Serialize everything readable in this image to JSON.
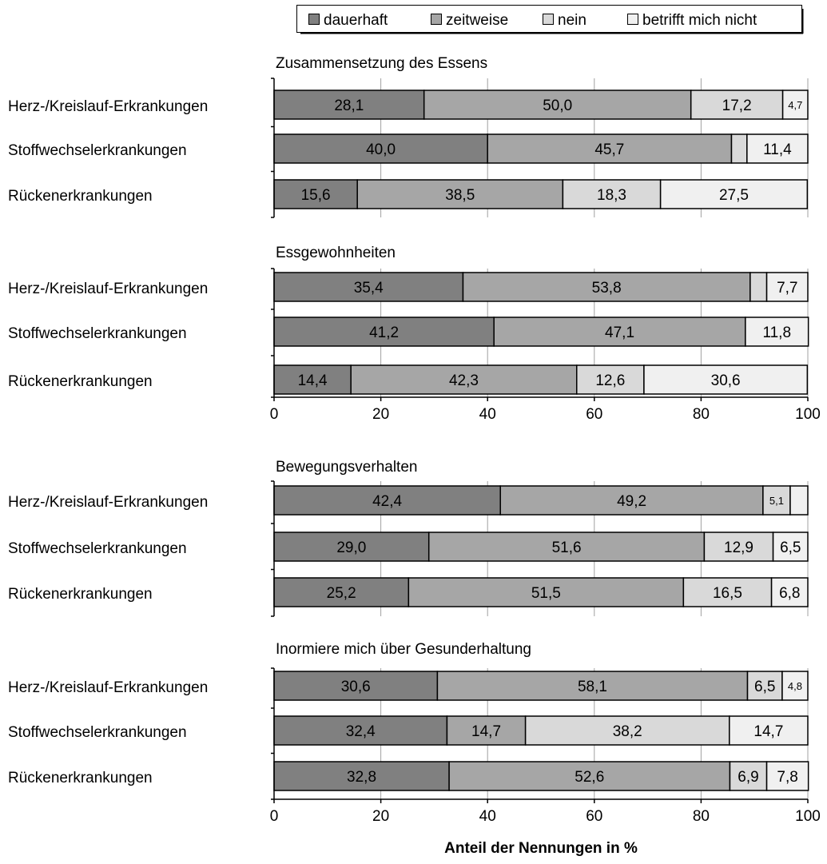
{
  "chart_data": {
    "type": "bar",
    "orientation": "horizontal",
    "stacked": true,
    "series": [
      {
        "name": "dauerhaft",
        "color": "#808080"
      },
      {
        "name": "zeitweise",
        "color": "#a6a6a6"
      },
      {
        "name": "nein",
        "color": "#d9d9d9"
      },
      {
        "name": "betrifft mich nicht",
        "color": "#f0f0f0"
      }
    ],
    "legend_position": "top-right",
    "xlim": [
      0,
      100
    ],
    "x_ticks": [
      "0",
      "20",
      "40",
      "60",
      "80",
      "100"
    ],
    "xlabel": "Anteil der Nennungen in %",
    "grid": "vertical",
    "panels": [
      {
        "title": "Zusammensetzung des Essens",
        "rows": [
          {
            "label": "Herz-/Kreislauf-Erkrankungen",
            "values": [
              28.1,
              50.0,
              17.2,
              4.7
            ],
            "labels": [
              "28,1",
              "50,0",
              "17,2",
              "4,7"
            ]
          },
          {
            "label": "Stoffwechselerkrankungen",
            "values": [
              40.0,
              45.7,
              2.9,
              11.4
            ],
            "labels": [
              "40,0",
              "45,7",
              "",
              "11,4"
            ]
          },
          {
            "label": "Rückenerkrankungen",
            "values": [
              15.6,
              38.5,
              18.3,
              27.5
            ],
            "labels": [
              "15,6",
              "38,5",
              "18,3",
              "27,5"
            ]
          }
        ]
      },
      {
        "title": "Essgewohnheiten",
        "rows": [
          {
            "label": "Herz-/Kreislauf-Erkrankungen",
            "values": [
              35.4,
              53.8,
              3.1,
              7.7
            ],
            "labels": [
              "35,4",
              "53,8",
              "",
              "7,7"
            ]
          },
          {
            "label": "Stoffwechselerkrankungen",
            "values": [
              41.2,
              47.1,
              0,
              11.8
            ],
            "labels": [
              "41,2",
              "47,1",
              "",
              "11,8"
            ]
          },
          {
            "label": "Rückenerkrankungen",
            "values": [
              14.4,
              42.3,
              12.6,
              30.6
            ],
            "labels": [
              "14,4",
              "42,3",
              "12,6",
              "30,6"
            ]
          }
        ]
      },
      {
        "title": "Bewegungsverhalten",
        "rows": [
          {
            "label": "Herz-/Kreislauf-Erkrankungen",
            "values": [
              42.4,
              49.2,
              5.1,
              3.3
            ],
            "labels": [
              "42,4",
              "49,2",
              "5,1",
              ""
            ]
          },
          {
            "label": "Stoffwechselerkrankungen",
            "values": [
              29.0,
              51.6,
              12.9,
              6.5
            ],
            "labels": [
              "29,0",
              "51,6",
              "12,9",
              "6,5"
            ]
          },
          {
            "label": "Rückenerkrankungen",
            "values": [
              25.2,
              51.5,
              16.5,
              6.8
            ],
            "labels": [
              "25,2",
              "51,5",
              "16,5",
              "6,8"
            ]
          }
        ]
      },
      {
        "title": "Inormiere mich über Gesunderhaltung",
        "rows": [
          {
            "label": "Herz-/Kreislauf-Erkrankungen",
            "values": [
              30.6,
              58.1,
              6.5,
              4.8
            ],
            "labels": [
              "30,6",
              "58,1",
              "6,5",
              "4,8"
            ]
          },
          {
            "label": "Stoffwechselerkrankungen",
            "values": [
              32.4,
              14.7,
              38.2,
              14.7
            ],
            "labels": [
              "32,4",
              "14,7",
              "38,2",
              "14,7"
            ]
          },
          {
            "label": "Rückenerkrankungen",
            "values": [
              32.8,
              52.6,
              6.9,
              7.8
            ],
            "labels": [
              "32,8",
              "52,6",
              "6,9",
              "7,8"
            ]
          }
        ]
      }
    ]
  }
}
